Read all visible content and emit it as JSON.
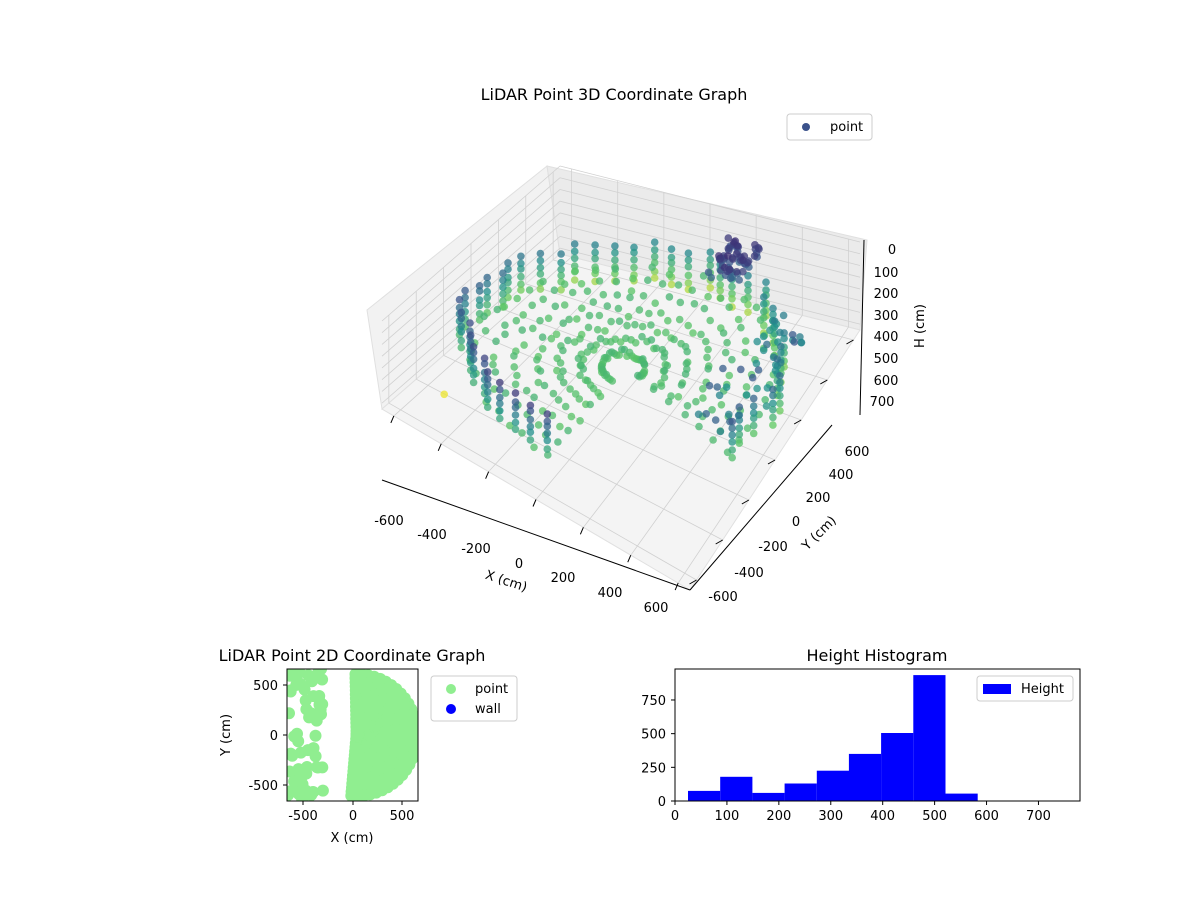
{
  "chart_data": [
    {
      "type": "scatter",
      "projection": "3d",
      "title": "LiDAR Point 3D Coordinate Graph",
      "xlabel": "X (cm)",
      "ylabel": "Y (cm)",
      "zlabel": "H (cm)",
      "xlim": [
        -650,
        650
      ],
      "ylim": [
        -650,
        650
      ],
      "zlim": [
        750,
        0
      ],
      "x_ticks": [
        "-600",
        "-400",
        "-200",
        "0",
        "200",
        "400",
        "600"
      ],
      "y_ticks": [
        "-600",
        "-400",
        "-200",
        "0",
        "200",
        "400",
        "600"
      ],
      "z_ticks": [
        "0",
        "100",
        "200",
        "300",
        "400",
        "500",
        "600",
        "700"
      ],
      "legend": [
        {
          "label": "point",
          "color": "#3b528b"
        }
      ],
      "legend_position": "top-right",
      "colormap": "viridis",
      "description_of_points": "Radial LiDAR sweep of a roughly circular room (radius ~600 cm); wall points at heights ~200-500 cm, floor fan toward origin, dense cluster near X=-200,Y=500,H~200"
    },
    {
      "type": "scatter",
      "title": "LiDAR Point 2D Coordinate Graph",
      "xlabel": "X (cm)",
      "ylabel": "Y (cm)",
      "xlim": [
        -650,
        650
      ],
      "ylim": [
        -650,
        650
      ],
      "x_ticks": [
        "-500",
        "0",
        "500"
      ],
      "y_ticks": [
        "500",
        "0",
        "-500"
      ],
      "legend": [
        {
          "label": "point",
          "color": "#90ee90"
        },
        {
          "label": "wall",
          "color": "#0000ff"
        }
      ],
      "legend_position": "outside-right"
    },
    {
      "type": "bar",
      "subtype": "histogram",
      "title": "Height Histogram",
      "xlim": [
        0,
        780
      ],
      "ylim": [
        0,
        980
      ],
      "bin_width": 62,
      "bins": [
        {
          "start": 25,
          "count": 75
        },
        {
          "start": 87,
          "count": 180
        },
        {
          "start": 149,
          "count": 60
        },
        {
          "start": 211,
          "count": 130
        },
        {
          "start": 273,
          "count": 225
        },
        {
          "start": 335,
          "count": 350
        },
        {
          "start": 397,
          "count": 505
        },
        {
          "start": 459,
          "count": 935
        },
        {
          "start": 521,
          "count": 55
        },
        {
          "start": 583,
          "count": 2
        },
        {
          "start": 645,
          "count": 1
        },
        {
          "start": 707,
          "count": 1
        }
      ],
      "x_ticks": [
        "0",
        "100",
        "200",
        "300",
        "400",
        "500",
        "600",
        "700"
      ],
      "y_ticks": [
        "0",
        "250",
        "500",
        "750"
      ],
      "color": "#0000ff",
      "legend": [
        {
          "label": "Height",
          "color": "#0000ff"
        }
      ],
      "legend_position": "top-right"
    }
  ]
}
